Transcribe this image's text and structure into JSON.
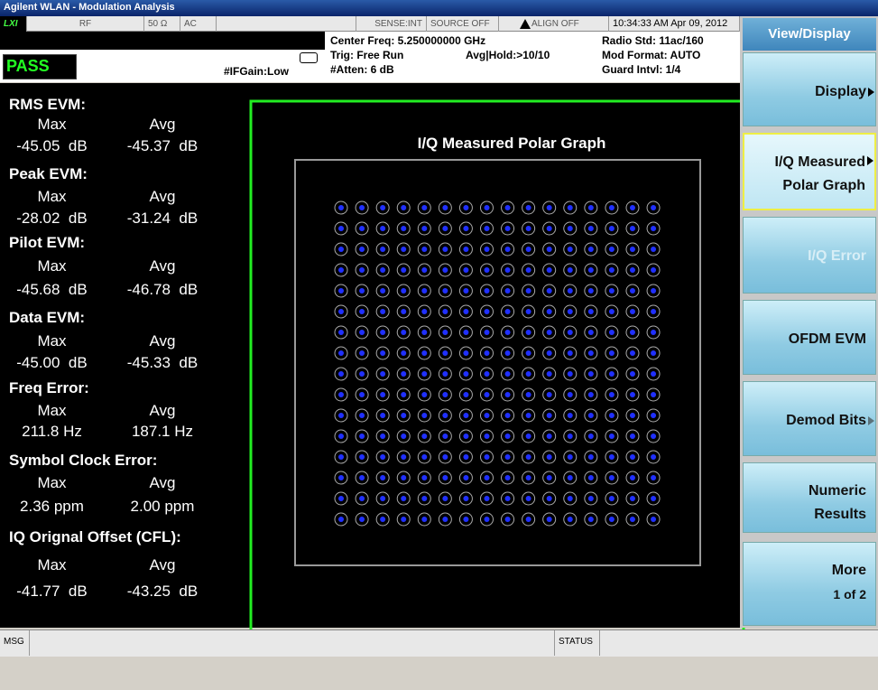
{
  "title_bar": "Agilent WLAN - Modulation Analysis",
  "status_bar": {
    "lxi": "LXI",
    "input": "RF",
    "impedance": "50 Ω",
    "coupling": "AC",
    "sense": "SENSE:INT",
    "source": "SOURCE OFF",
    "align": "ALIGN OFF",
    "datetime": "10:34:33 AM Apr 09, 2012"
  },
  "settings": {
    "verdict": "PASS",
    "if_gain": "#IFGain:Low",
    "center_freq": "Center Freq: 5.250000000 GHz",
    "trig": "Trig: Free Run",
    "avg_hold": "Avg|Hold:>10/10",
    "atten": "#Atten: 6 dB",
    "radio_std": "Radio Std: 11ac/160",
    "mod_format": "Mod Format: AUTO",
    "guard_intvl": "Guard Intvl: 1/4"
  },
  "metrics": [
    {
      "label": "RMS EVM:",
      "max_header": "Max",
      "avg_header": "Avg",
      "max": "-45.05  dB",
      "avg": "-45.37  dB"
    },
    {
      "label": "Peak EVM:",
      "max_header": "Max",
      "avg_header": "Avg",
      "max": "-28.02  dB",
      "avg": "-31.24  dB"
    },
    {
      "label": "Pilot EVM:",
      "max_header": "Max",
      "avg_header": "Avg",
      "max": "-45.68  dB",
      "avg": "-46.78  dB"
    },
    {
      "label": "Data EVM:",
      "max_header": "Max",
      "avg_header": "Avg",
      "max": "-45.00  dB",
      "avg": "-45.33  dB"
    },
    {
      "label": "Freq Error:",
      "max_header": "Max",
      "avg_header": "Avg",
      "max": "211.8 Hz",
      "avg": "187.1 Hz"
    },
    {
      "label": "Symbol Clock Error:",
      "max_header": "Max",
      "avg_header": "Avg",
      "max": "2.36 ppm",
      "avg": "2.00 ppm"
    },
    {
      "label": "IQ Orignal Offset (CFL):",
      "max_header": "Max",
      "avg_header": "Avg",
      "max": "-41.77  dB",
      "avg": "-43.25  dB"
    }
  ],
  "graph": {
    "title": "I/Q Measured Polar Graph"
  },
  "softkeys": {
    "header": "View/Display",
    "keys": [
      {
        "lines": [
          "Display"
        ]
      },
      {
        "lines": [
          "I/Q Measured",
          "Polar Graph"
        ]
      },
      {
        "lines": [
          "I/Q Error"
        ]
      },
      {
        "lines": [
          "OFDM EVM"
        ]
      },
      {
        "lines": [
          "Demod Bits"
        ]
      },
      {
        "lines": [
          "Numeric",
          "Results"
        ]
      },
      {
        "lines": [
          "More",
          "1 of 2"
        ]
      }
    ]
  },
  "bottom_bar": {
    "msg": "MSG",
    "status": "STATUS"
  }
}
